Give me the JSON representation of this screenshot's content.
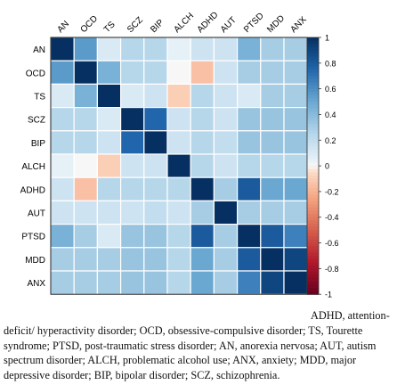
{
  "chart_data": {
    "type": "heatmap",
    "row_labels": [
      "AN",
      "OCD",
      "TS",
      "SCZ",
      "BIP",
      "ALCH",
      "ADHD",
      "AUT",
      "PTSD",
      "MDD",
      "ANX"
    ],
    "col_labels": [
      "AN",
      "OCD",
      "TS",
      "SCZ",
      "BIP",
      "ALCH",
      "ADHD",
      "AUT",
      "PTSD",
      "MDD",
      "ANX"
    ],
    "values": [
      [
        1.0,
        0.55,
        0.1,
        0.25,
        0.25,
        0.05,
        0.15,
        0.15,
        0.45,
        0.3,
        0.3
      ],
      [
        0.55,
        1.0,
        0.45,
        0.25,
        0.25,
        0.0,
        -0.15,
        0.15,
        0.3,
        0.3,
        0.3
      ],
      [
        0.1,
        0.45,
        1.0,
        0.1,
        0.15,
        -0.1,
        0.25,
        0.15,
        0.1,
        0.3,
        0.3
      ],
      [
        0.25,
        0.25,
        0.1,
        1.0,
        0.75,
        0.15,
        0.25,
        0.15,
        0.35,
        0.35,
        0.35
      ],
      [
        0.25,
        0.25,
        0.15,
        0.75,
        1.0,
        0.15,
        0.25,
        0.2,
        0.35,
        0.35,
        0.35
      ],
      [
        0.05,
        0.0,
        -0.1,
        0.15,
        0.15,
        1.0,
        0.25,
        0.15,
        0.25,
        0.25,
        0.25
      ],
      [
        0.15,
        -0.15,
        0.25,
        0.25,
        0.25,
        0.25,
        1.0,
        0.3,
        0.8,
        0.5,
        0.5
      ],
      [
        0.15,
        0.15,
        0.15,
        0.15,
        0.2,
        0.15,
        0.3,
        1.0,
        0.3,
        0.3,
        0.3
      ],
      [
        0.45,
        0.3,
        0.1,
        0.35,
        0.35,
        0.25,
        0.8,
        0.3,
        1.0,
        0.8,
        0.65
      ],
      [
        0.3,
        0.3,
        0.3,
        0.35,
        0.35,
        0.25,
        0.5,
        0.3,
        0.8,
        1.0,
        0.9
      ],
      [
        0.3,
        0.3,
        0.3,
        0.35,
        0.35,
        0.25,
        0.5,
        0.3,
        0.65,
        0.9,
        1.0
      ]
    ],
    "colorbar": {
      "range": [
        -1,
        1
      ],
      "ticks": [
        "1",
        "0.8",
        "0.6",
        "0.4",
        "0.2",
        "0",
        "-0.2",
        "-0.4",
        "-0.6",
        "-0.8",
        "-1"
      ],
      "positive_color": "#053061",
      "zero_color": "#f7f7f7",
      "negative_color": "#67001f"
    }
  },
  "caption": "ADHD, attention-deficit/ hyperactivity disorder; OCD, obsessive-compulsive disorder; TS, Tourette syndrome; PTSD, post-traumatic stress disorder; AN, anorexia nervosa; AUT, autism spectrum disorder; ALCH, problematic alcohol use; ANX, anxiety; MDD, major depressive disorder; BIP, bipolar disorder; SCZ, schizophrenia."
}
